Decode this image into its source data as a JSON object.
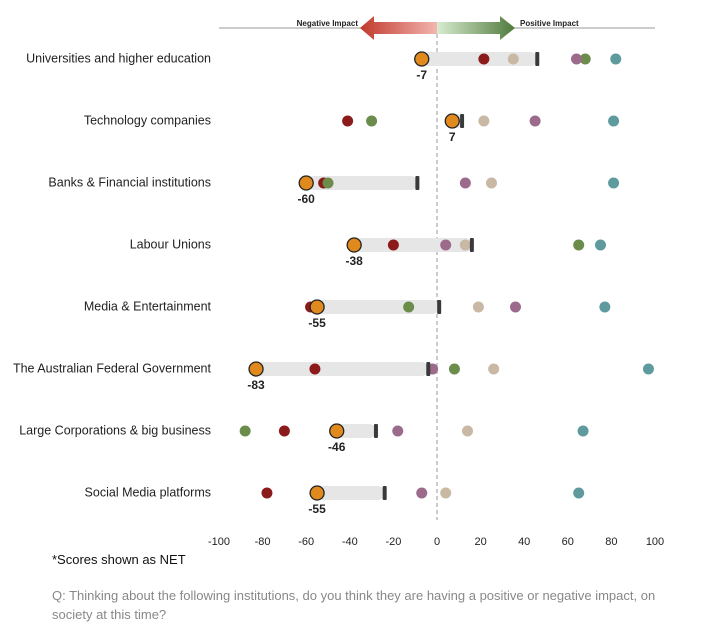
{
  "chart_data": {
    "type": "dot",
    "negative_label": "Negative Impact",
    "positive_label": "Positive Impact",
    "categories": [
      "Universities and higher education",
      "Technology companies",
      "Banks & Financial institutions",
      "Labour Unions",
      "Media & Entertainment",
      "The Australian Federal Government",
      "Large Corporations & big business",
      "Social Media platforms"
    ],
    "series": [
      {
        "color": "#e08a1e",
        "shape": "circle-labeled",
        "values": [
          -7,
          7,
          -60,
          -38,
          -55,
          -83,
          -46,
          -55
        ]
      },
      {
        "color": "#3a3a3a",
        "shape": "tick",
        "values": [
          46,
          11.5,
          -9,
          16,
          1,
          -4,
          -28,
          -24
        ]
      },
      {
        "color": "#8b1a1a",
        "shape": "circle",
        "values": [
          21.5,
          -41,
          -52,
          -20,
          -58,
          -56,
          -70,
          -78
        ]
      },
      {
        "color": "#6b8c4a",
        "shape": "circle",
        "values": [
          68,
          -30,
          -50,
          65,
          -13,
          8,
          -88,
          null
        ]
      },
      {
        "color": "#9c6b8c",
        "shape": "circle",
        "values": [
          64,
          45,
          13,
          4,
          36,
          -2,
          -18,
          -7
        ]
      },
      {
        "color": "#c8b8a4",
        "shape": "circle",
        "values": [
          35,
          21.5,
          25,
          13,
          19,
          26,
          14,
          4
        ]
      },
      {
        "color": "#5f9a9e",
        "shape": "circle",
        "values": [
          82,
          81,
          81,
          75,
          77,
          97,
          67,
          65
        ]
      }
    ],
    "xlim": [
      -100,
      100
    ],
    "xticks": [
      -100,
      -80,
      -60,
      -40,
      -20,
      0,
      20,
      40,
      60,
      80,
      100
    ],
    "footnote": "*Scores shown as NET",
    "question": "Q: Thinking about the following institutions, do you think they are having a positive or negative impact, on society at this time?"
  }
}
